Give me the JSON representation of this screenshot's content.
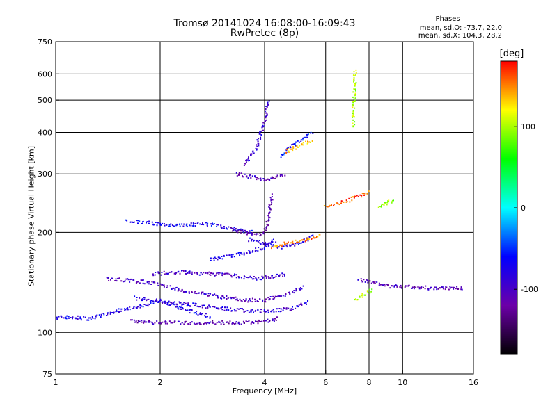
{
  "chart_data": {
    "type": "scatter",
    "title": "Tromsø 20141024 16:08:00-16:09:43",
    "subtitle": "RwPretec (8p)",
    "stats": {
      "heading": "Phases",
      "o_mode": "mean, sd,O: -73.7, 22.0",
      "x_mode": "mean, sd,X: 104.3, 28.2"
    },
    "xlabel": "Frequency [MHz]",
    "ylabel": "Stationary phase Virtual Height [km]",
    "x_scale": "log",
    "y_scale": "log",
    "xlim": [
      1,
      16
    ],
    "ylim": [
      75,
      750
    ],
    "xticks": [
      1,
      2,
      4,
      6,
      8,
      10,
      16
    ],
    "yticks": [
      75,
      100,
      200,
      300,
      400,
      500,
      600,
      750
    ],
    "x_gridlines": [
      2,
      4,
      6,
      8,
      10
    ],
    "y_gridlines": [
      100,
      200,
      300,
      400,
      500,
      600
    ],
    "grid": true,
    "colorbar": {
      "label": "[deg]",
      "range": [
        -180,
        180
      ],
      "ticks": [
        100,
        0,
        -100
      ],
      "colormap": "rainbow",
      "stops": [
        "#000000",
        "#6c00a8",
        "#0000ff",
        "#00ffff",
        "#00ff00",
        "#ffff00",
        "#ff0000"
      ]
    },
    "series": [
      {
        "mode": "O",
        "traces": [
          {
            "f": [
              1.0,
              1.1,
              1.25,
              1.5,
              1.8,
              2.0,
              2.3,
              2.6,
              2.8
            ],
            "h": [
              111,
              111,
              110,
              116,
              120,
              125,
              118,
              114,
              111
            ],
            "phase": -75
          },
          {
            "f": [
              1.65,
              2.0,
              2.5,
              3.0,
              3.5,
              4.0,
              4.4
            ],
            "h": [
              108,
              107,
              107,
              107,
              107,
              108,
              110
            ],
            "phase": -110
          },
          {
            "f": [
              1.4,
              1.8,
              2.1,
              2.5,
              3.0,
              3.5,
              4.0,
              4.6,
              5.2
            ],
            "h": [
              145,
              142,
              137,
              132,
              128,
              125,
              125,
              130,
              138
            ],
            "phase": -100
          },
          {
            "f": [
              1.7,
              2.0,
              2.5,
              3.0,
              3.6,
              4.2,
              4.8,
              5.4
            ],
            "h": [
              127,
              124,
              121,
              118,
              116,
              116,
              118,
              124
            ],
            "phase": -85
          },
          {
            "f": [
              1.9,
              2.3,
              2.8,
              3.3,
              3.8,
              4.2,
              4.6
            ],
            "h": [
              150,
              152,
              150,
              148,
              145,
              147,
              150
            ],
            "phase": -95
          },
          {
            "f": [
              1.6,
              1.9,
              2.2,
              2.7,
              3.2,
              3.7
            ],
            "h": [
              217,
              213,
              210,
              212,
              206,
              200
            ],
            "phase": -70
          },
          {
            "f": [
              2.8,
              3.2,
              3.6,
              4.0,
              4.3
            ],
            "h": [
              165,
              170,
              175,
              180,
              190
            ],
            "phase": -80
          },
          {
            "f": [
              3.2,
              3.5,
              3.8,
              4.0,
              4.1,
              4.2
            ],
            "h": [
              205,
              200,
              197,
              200,
              220,
              260
            ],
            "phase": -115
          },
          {
            "f": [
              3.3,
              3.6,
              3.9,
              4.1,
              4.3,
              4.6
            ],
            "h": [
              300,
              295,
              290,
              288,
              292,
              300
            ],
            "phase": -105
          },
          {
            "f": [
              3.5,
              3.8,
              3.9,
              4.0,
              4.05,
              4.1
            ],
            "h": [
              320,
              360,
              400,
              430,
              460,
              500
            ],
            "phase": -90
          },
          {
            "f": [
              3.6,
              4.0,
              4.5,
              5.0,
              5.5
            ],
            "h": [
              190,
              185,
              180,
              185,
              195
            ],
            "phase": -80
          },
          {
            "f": [
              4.5,
              4.7,
              5.0,
              5.2,
              5.5
            ],
            "h": [
              340,
              360,
              375,
              385,
              400
            ],
            "phase": -60
          },
          {
            "f": [
              7.5,
              8.0,
              8.5,
              9.0,
              10.0,
              11.0,
              12.0,
              13.5,
              15.0
            ],
            "h": [
              145,
              142,
              140,
              138,
              137,
              137,
              136,
              136,
              136
            ],
            "phase": -105
          }
        ]
      },
      {
        "mode": "X",
        "traces": [
          {
            "f": [
              4.2,
              4.6,
              5.0,
              5.4,
              5.8
            ],
            "h": [
              180,
              185,
              188,
              192,
              196
            ],
            "phase": 150
          },
          {
            "f": [
              4.6,
              4.9,
              5.2,
              5.5
            ],
            "h": [
              350,
              360,
              370,
              380
            ],
            "phase": 135
          },
          {
            "f": [
              6.0,
              6.5,
              7.0,
              7.5,
              8.0
            ],
            "h": [
              240,
              245,
              250,
              258,
              265
            ],
            "phase": 160
          },
          {
            "f": [
              7.3,
              7.6,
              7.9,
              8.2
            ],
            "h": [
              125,
              128,
              132,
              135
            ],
            "phase": 95
          },
          {
            "f": [
              8.5,
              9.0,
              9.5
            ],
            "h": [
              240,
              245,
              250
            ],
            "phase": 95
          },
          {
            "f": [
              7.2,
              7.25,
              7.3
            ],
            "h": [
              420,
              500,
              620
            ],
            "phase": 100
          }
        ]
      }
    ]
  }
}
